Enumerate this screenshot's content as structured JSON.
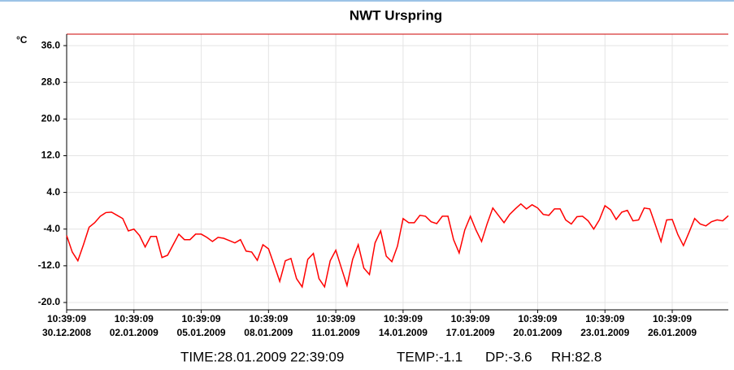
{
  "chart_data": {
    "type": "line",
    "title": "NWT Urspring",
    "y_label": "°C",
    "x": [
      "2008-12-30T10:39:09",
      "2008-12-30T16:39:09",
      "2008-12-30T22:39:09",
      "2008-12-31T04:39:09",
      "2008-12-31T10:39:09",
      "2008-12-31T16:39:09",
      "2008-12-31T22:39:09",
      "2009-01-01T04:39:09",
      "2009-01-01T10:39:09",
      "2009-01-01T16:39:09",
      "2009-01-01T22:39:09",
      "2009-01-02T04:39:09",
      "2009-01-02T10:39:09",
      "2009-01-02T16:39:09",
      "2009-01-02T22:39:09",
      "2009-01-03T04:39:09",
      "2009-01-03T10:39:09",
      "2009-01-03T16:39:09",
      "2009-01-03T22:39:09",
      "2009-01-04T04:39:09",
      "2009-01-04T10:39:09",
      "2009-01-04T16:39:09",
      "2009-01-04T22:39:09",
      "2009-01-05T04:39:09",
      "2009-01-05T10:39:09",
      "2009-01-05T16:39:09",
      "2009-01-05T22:39:09",
      "2009-01-06T04:39:09",
      "2009-01-06T10:39:09",
      "2009-01-06T16:39:09",
      "2009-01-06T22:39:09",
      "2009-01-07T04:39:09",
      "2009-01-07T10:39:09",
      "2009-01-07T16:39:09",
      "2009-01-07T22:39:09",
      "2009-01-08T04:39:09",
      "2009-01-08T10:39:09",
      "2009-01-08T16:39:09",
      "2009-01-08T22:39:09",
      "2009-01-09T04:39:09",
      "2009-01-09T10:39:09",
      "2009-01-09T16:39:09",
      "2009-01-09T22:39:09",
      "2009-01-10T04:39:09",
      "2009-01-10T10:39:09",
      "2009-01-10T16:39:09",
      "2009-01-10T22:39:09",
      "2009-01-11T04:39:09",
      "2009-01-11T10:39:09",
      "2009-01-11T16:39:09",
      "2009-01-11T22:39:09",
      "2009-01-12T04:39:09",
      "2009-01-12T10:39:09",
      "2009-01-12T16:39:09",
      "2009-01-12T22:39:09",
      "2009-01-13T04:39:09",
      "2009-01-13T10:39:09",
      "2009-01-13T16:39:09",
      "2009-01-13T22:39:09",
      "2009-01-14T04:39:09",
      "2009-01-14T10:39:09",
      "2009-01-14T16:39:09",
      "2009-01-14T22:39:09",
      "2009-01-15T04:39:09",
      "2009-01-15T10:39:09",
      "2009-01-15T16:39:09",
      "2009-01-15T22:39:09",
      "2009-01-16T04:39:09",
      "2009-01-16T10:39:09",
      "2009-01-16T16:39:09",
      "2009-01-16T22:39:09",
      "2009-01-17T04:39:09",
      "2009-01-17T10:39:09",
      "2009-01-17T16:39:09",
      "2009-01-17T22:39:09",
      "2009-01-18T04:39:09",
      "2009-01-18T10:39:09",
      "2009-01-18T16:39:09",
      "2009-01-18T22:39:09",
      "2009-01-19T04:39:09",
      "2009-01-19T10:39:09",
      "2009-01-19T16:39:09",
      "2009-01-19T22:39:09",
      "2009-01-20T04:39:09",
      "2009-01-20T10:39:09",
      "2009-01-20T16:39:09",
      "2009-01-20T22:39:09",
      "2009-01-21T04:39:09",
      "2009-01-21T10:39:09",
      "2009-01-21T16:39:09",
      "2009-01-21T22:39:09",
      "2009-01-22T04:39:09",
      "2009-01-22T10:39:09",
      "2009-01-22T16:39:09",
      "2009-01-22T22:39:09",
      "2009-01-23T04:39:09",
      "2009-01-23T10:39:09",
      "2009-01-23T16:39:09",
      "2009-01-23T22:39:09",
      "2009-01-24T04:39:09",
      "2009-01-24T10:39:09",
      "2009-01-24T16:39:09",
      "2009-01-24T22:39:09",
      "2009-01-25T04:39:09",
      "2009-01-25T10:39:09",
      "2009-01-25T16:39:09",
      "2009-01-25T22:39:09",
      "2009-01-26T04:39:09",
      "2009-01-26T10:39:09",
      "2009-01-26T16:39:09",
      "2009-01-26T22:39:09",
      "2009-01-27T04:39:09",
      "2009-01-27T10:39:09",
      "2009-01-27T16:39:09",
      "2009-01-27T22:39:09",
      "2009-01-28T04:39:09",
      "2009-01-28T10:39:09",
      "2009-01-28T16:39:09",
      "2009-01-28T22:39:09"
    ],
    "series": [
      {
        "color": "#ff0000",
        "values": [
          -5.4,
          -9.0,
          -10.9,
          -7.4,
          -3.6,
          -2.6,
          -1.2,
          -0.4,
          -0.3,
          -1.0,
          -1.7,
          -4.4,
          -4.0,
          -5.4,
          -7.9,
          -5.6,
          -5.6,
          -10.2,
          -9.7,
          -7.4,
          -5.1,
          -6.3,
          -6.3,
          -5.1,
          -5.1,
          -5.8,
          -6.7,
          -5.8,
          -6.0,
          -6.5,
          -7.0,
          -6.3,
          -8.8,
          -9.0,
          -10.8,
          -7.4,
          -8.3,
          -11.8,
          -15.4,
          -10.9,
          -10.4,
          -14.8,
          -16.6,
          -10.6,
          -9.3,
          -14.8,
          -16.6,
          -10.9,
          -8.6,
          -12.5,
          -16.3,
          -10.6,
          -7.4,
          -12.5,
          -13.9,
          -7.0,
          -4.4,
          -9.9,
          -11.1,
          -7.7,
          -1.7,
          -2.6,
          -2.6,
          -1.0,
          -1.2,
          -2.4,
          -2.8,
          -1.2,
          -1.2,
          -6.3,
          -9.2,
          -4.2,
          -1.2,
          -4.2,
          -6.7,
          -2.8,
          0.6,
          -1.0,
          -2.6,
          -0.8,
          0.4,
          1.5,
          0.4,
          1.3,
          0.6,
          -0.8,
          -1.0,
          0.4,
          0.4,
          -2.0,
          -2.9,
          -1.3,
          -1.2,
          -2.2,
          -4.0,
          -2.0,
          1.1,
          0.2,
          -1.9,
          -0.3,
          0.1,
          -2.2,
          -2.0,
          0.6,
          0.4,
          -3.1,
          -6.7,
          -2.0,
          -1.9,
          -5.2,
          -7.6,
          -4.7,
          -1.7,
          -2.9,
          -3.3,
          -2.4,
          -2.0,
          -2.2,
          -1.1
        ]
      }
    ],
    "xlim": [
      "2008-12-30T10:39:09",
      "2009-01-28T22:39:09"
    ],
    "xticks": [
      {
        "value": "2008-12-30T10:39:09",
        "label": [
          "10:39:09",
          "30.12.2008"
        ]
      },
      {
        "value": "2009-01-02T10:39:09",
        "label": [
          "10:39:09",
          "02.01.2009"
        ]
      },
      {
        "value": "2009-01-05T10:39:09",
        "label": [
          "10:39:09",
          "05.01.2009"
        ]
      },
      {
        "value": "2009-01-08T10:39:09",
        "label": [
          "10:39:09",
          "08.01.2009"
        ]
      },
      {
        "value": "2009-01-11T10:39:09",
        "label": [
          "10:39:09",
          "11.01.2009"
        ]
      },
      {
        "value": "2009-01-14T10:39:09",
        "label": [
          "10:39:09",
          "14.01.2009"
        ]
      },
      {
        "value": "2009-01-17T10:39:09",
        "label": [
          "10:39:09",
          "17.01.2009"
        ]
      },
      {
        "value": "2009-01-20T10:39:09",
        "label": [
          "10:39:09",
          "20.01.2009"
        ]
      },
      {
        "value": "2009-01-23T10:39:09",
        "label": [
          "10:39:09",
          "23.01.2009"
        ]
      },
      {
        "value": "2009-01-26T10:39:09",
        "label": [
          "10:39:09",
          "26.01.2009"
        ]
      }
    ],
    "ylim": [
      -21.6,
      38.5
    ],
    "yticks": [
      {
        "value": 36,
        "label": "36.0"
      },
      {
        "value": 28,
        "label": "28.0"
      },
      {
        "value": 20,
        "label": "20.0"
      },
      {
        "value": 12,
        "label": "12.0"
      },
      {
        "value": 4,
        "label": "4.0"
      },
      {
        "value": -4,
        "label": "-4.0"
      },
      {
        "value": -12,
        "label": "-12.0"
      },
      {
        "value": -20,
        "label": "-20.0"
      }
    ],
    "grid": true,
    "status": [
      "TIME:28.01.2009 22:39:09",
      "TEMP:-1.1",
      "DP:-3.6",
      "RH:82.8"
    ]
  }
}
